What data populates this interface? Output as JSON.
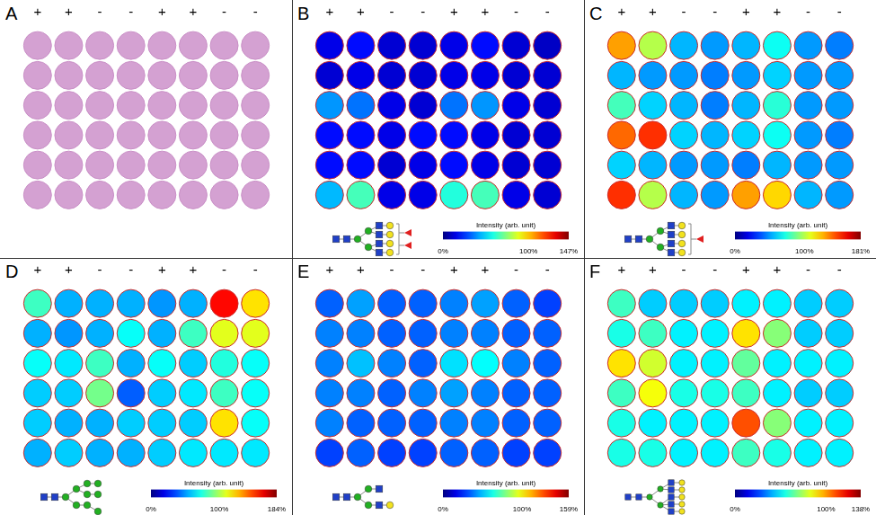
{
  "chart_data": [
    {
      "panel": "A",
      "type": "image",
      "column_labels": [
        "+",
        "+",
        "-",
        "-",
        "+",
        "+",
        "-",
        "-"
      ],
      "rows": 6,
      "color": "#d4a1d2"
    },
    {
      "panel": "B",
      "type": "heatmap",
      "column_labels": [
        "+",
        "+",
        "-",
        "-",
        "+",
        "+",
        "-",
        "-"
      ],
      "cells": [
        [
          15,
          20,
          12,
          12,
          15,
          20,
          12,
          10
        ],
        [
          12,
          15,
          12,
          12,
          15,
          15,
          12,
          12
        ],
        [
          40,
          35,
          15,
          12,
          35,
          40,
          15,
          12
        ],
        [
          20,
          20,
          15,
          20,
          20,
          15,
          12,
          12
        ],
        [
          20,
          20,
          12,
          15,
          20,
          15,
          12,
          12
        ],
        [
          45,
          65,
          15,
          15,
          60,
          65,
          15,
          12
        ]
      ],
      "colorbar": {
        "label": "Intensity (arb. unit)",
        "range": [
          0,
          147
        ],
        "ticks": [
          {
            "value": 0,
            "label": "0%"
          },
          {
            "value": 100,
            "label": "100%"
          },
          {
            "value": 147,
            "label": "147%"
          }
        ]
      }
    },
    {
      "panel": "C",
      "type": "heatmap",
      "column_labels": [
        "+",
        "+",
        "-",
        "-",
        "+",
        "+",
        "-",
        "-"
      ],
      "cells": [
        [
          130,
          100,
          55,
          50,
          55,
          70,
          50,
          45
        ],
        [
          55,
          50,
          50,
          45,
          50,
          60,
          50,
          50
        ],
        [
          80,
          60,
          55,
          45,
          55,
          75,
          50,
          50
        ],
        [
          140,
          150,
          60,
          55,
          60,
          70,
          50,
          45
        ],
        [
          60,
          55,
          50,
          50,
          45,
          55,
          50,
          50
        ],
        [
          150,
          100,
          55,
          50,
          130,
          120,
          55,
          50
        ]
      ],
      "colorbar": {
        "label": "Intensity (arb. unit)",
        "range": [
          0,
          181
        ],
        "ticks": [
          {
            "value": 0,
            "label": "0%"
          },
          {
            "value": 100,
            "label": "100%"
          },
          {
            "value": 181,
            "label": "181%"
          }
        ]
      }
    },
    {
      "panel": "D",
      "type": "heatmap",
      "column_labels": [
        "+",
        "+",
        "-",
        "-",
        "+",
        "+",
        "-",
        "-"
      ],
      "cells": [
        [
          80,
          55,
          55,
          55,
          50,
          55,
          160,
          120
        ],
        [
          55,
          50,
          55,
          70,
          55,
          80,
          110,
          110
        ],
        [
          70,
          65,
          80,
          55,
          70,
          60,
          75,
          70
        ],
        [
          60,
          60,
          90,
          40,
          60,
          65,
          80,
          70
        ],
        [
          60,
          55,
          55,
          60,
          60,
          60,
          120,
          70
        ],
        [
          55,
          60,
          55,
          55,
          60,
          65,
          65,
          65
        ]
      ],
      "colorbar": {
        "label": "Intensity (arb. unit)",
        "range": [
          0,
          184
        ],
        "ticks": [
          {
            "value": 0,
            "label": "0%"
          },
          {
            "value": 100,
            "label": "100%"
          },
          {
            "value": 184,
            "label": "184%"
          }
        ]
      }
    },
    {
      "panel": "E",
      "type": "heatmap",
      "column_labels": [
        "+",
        "+",
        "-",
        "-",
        "+",
        "+",
        "-",
        "-"
      ],
      "cells": [
        [
          35,
          45,
          35,
          35,
          40,
          45,
          35,
          30
        ],
        [
          40,
          40,
          35,
          35,
          40,
          40,
          35,
          35
        ],
        [
          40,
          50,
          40,
          35,
          55,
          60,
          40,
          35
        ],
        [
          40,
          40,
          35,
          40,
          45,
          40,
          35,
          35
        ],
        [
          40,
          35,
          35,
          35,
          40,
          40,
          35,
          35
        ],
        [
          30,
          35,
          30,
          30,
          35,
          35,
          30,
          30
        ]
      ],
      "colorbar": {
        "label": "Intensity (arb. unit)",
        "range": [
          0,
          159
        ],
        "ticks": [
          {
            "value": 0,
            "label": "0%"
          },
          {
            "value": 100,
            "label": "100%"
          },
          {
            "value": 159,
            "label": "159%"
          }
        ]
      }
    },
    {
      "panel": "F",
      "type": "heatmap",
      "column_labels": [
        "+",
        "+",
        "-",
        "-",
        "+",
        "+",
        "-",
        "-"
      ],
      "cells": [
        [
          60,
          45,
          45,
          45,
          50,
          50,
          45,
          45
        ],
        [
          55,
          60,
          50,
          50,
          90,
          70,
          45,
          45
        ],
        [
          90,
          80,
          50,
          50,
          65,
          50,
          50,
          50
        ],
        [
          60,
          85,
          55,
          55,
          60,
          50,
          45,
          45
        ],
        [
          55,
          50,
          50,
          50,
          110,
          70,
          50,
          50
        ],
        [
          55,
          55,
          50,
          50,
          60,
          55,
          50,
          50
        ]
      ],
      "colorbar": {
        "label": "Intensity (arb. unit)",
        "range": [
          0,
          138
        ],
        "ticks": [
          {
            "value": 0,
            "label": "0%"
          },
          {
            "value": 100,
            "label": "100%"
          },
          {
            "value": 138,
            "label": "138%"
          }
        ]
      }
    }
  ]
}
